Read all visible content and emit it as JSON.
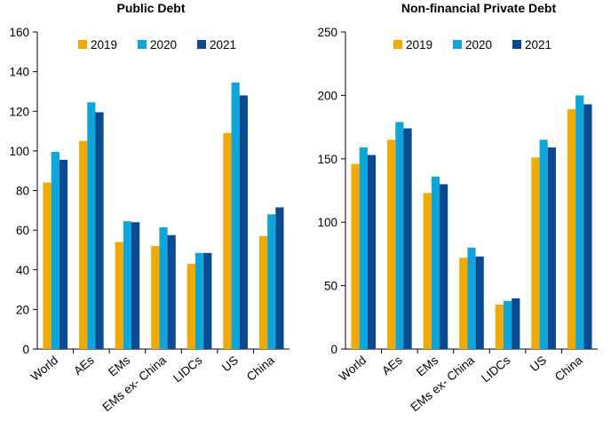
{
  "colors": {
    "2019": "#F2A900",
    "2020": "#0EA5DB",
    "2021": "#0B4A91"
  },
  "chart_data": [
    {
      "type": "bar",
      "title": "Public Debt",
      "categories": [
        "World",
        "AEs",
        "EMs",
        "EMs ex- China",
        "LIDCs",
        "US",
        "China"
      ],
      "series": [
        {
          "name": "2019",
          "values": [
            84,
            105,
            54,
            52,
            43,
            109,
            57
          ]
        },
        {
          "name": "2020",
          "values": [
            99.5,
            124.5,
            64.5,
            61.5,
            48.5,
            134.5,
            68
          ]
        },
        {
          "name": "2021",
          "values": [
            95.5,
            119.5,
            64,
            57.5,
            48.5,
            128,
            71.5
          ]
        }
      ],
      "ylim": [
        0,
        160
      ],
      "yticks": [
        0,
        20,
        40,
        60,
        80,
        100,
        120,
        140,
        160
      ],
      "legend": "top",
      "grid": false
    },
    {
      "type": "bar",
      "title": "Non-financial Private Debt",
      "categories": [
        "World",
        "AEs",
        "EMs",
        "EMs ex- China",
        "LIDCs",
        "US",
        "China"
      ],
      "series": [
        {
          "name": "2019",
          "values": [
            146,
            165,
            123,
            72,
            35,
            151,
            189
          ]
        },
        {
          "name": "2020",
          "values": [
            159,
            179,
            136,
            80,
            38,
            165,
            200
          ]
        },
        {
          "name": "2021",
          "values": [
            153,
            174,
            130,
            73,
            40,
            159,
            193
          ]
        }
      ],
      "ylim": [
        0,
        250
      ],
      "yticks": [
        0,
        50,
        100,
        150,
        200,
        250
      ],
      "legend": "top",
      "grid": false
    }
  ]
}
